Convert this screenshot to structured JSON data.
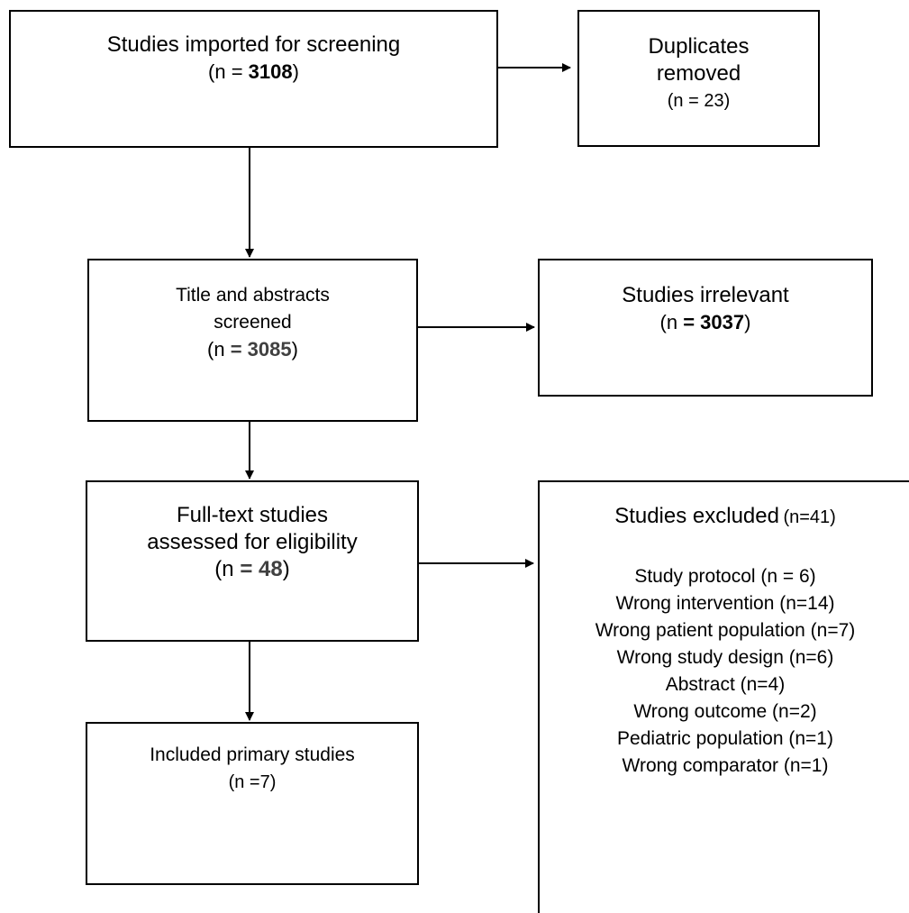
{
  "boxes": {
    "imported": {
      "line1": "Studies imported for screening",
      "n_prefix": "(n = ",
      "n_value": "3108",
      "n_suffix": ")"
    },
    "duplicates": {
      "line1": "Duplicates",
      "line2": "removed",
      "n_text": "(n = 23)"
    },
    "screened": {
      "line1": "Title and abstracts",
      "line2": "screened",
      "n_prefix": "(n ",
      "n_value": "=  3085",
      "n_suffix": ")"
    },
    "irrelevant": {
      "line1": "Studies irrelevant",
      "n_prefix": "(n ",
      "n_value": "= 3037",
      "n_suffix": ")"
    },
    "fulltext": {
      "line1": "Full-text studies",
      "line2": "assessed for eligibility",
      "n_prefix": "(n ",
      "n_value": "= 48",
      "n_suffix": ")"
    },
    "excluded": {
      "title": "Studies excluded",
      "title_n": "(n=41)",
      "reasons": [
        "Study protocol (n = 6)",
        "Wrong intervention (n=14)",
        "Wrong patient population (n=7)",
        "Wrong study design (n=6)",
        "Abstract (n=4)",
        "Wrong outcome (n=2)",
        "Pediatric population (n=1)",
        "Wrong comparator (n=1)"
      ]
    },
    "included": {
      "line1": "Included primary studies",
      "n_text": "(n =7)"
    }
  }
}
